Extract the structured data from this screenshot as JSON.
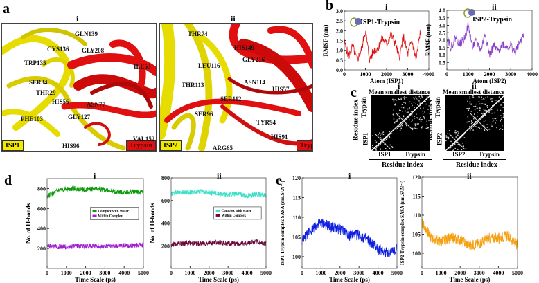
{
  "panels": {
    "a": {
      "label": "a",
      "sub_i": "i",
      "sub_ii": "ii",
      "i": {
        "left_tag": "ISP1",
        "right_tag": "Trypsin",
        "residues": [
          "GLN139",
          "CYS136",
          "GLY208",
          "TRP135",
          "ILE53",
          "SER34",
          "THR29",
          "HIS56",
          "ASN77",
          "GLY127",
          "PHE103",
          "VAL152",
          "HIS96"
        ]
      },
      "ii": {
        "left_tag": "ISP2",
        "right_tag": "Trypsin",
        "residues": [
          "THR74",
          "HIS149",
          "GLY216",
          "LEU116",
          "THR113",
          "ASN114",
          "HIS57",
          "SER112",
          "SER96",
          "TYR94",
          "HIS91",
          "ARG65"
        ]
      }
    },
    "b": {
      "label": "b",
      "sub_i": "i",
      "sub_ii": "ii",
      "inset_i": "ISP1-Trypsin",
      "inset_ii": "ISP2-Trypsin"
    },
    "c": {
      "label": "c",
      "sub_i": "i",
      "sub_ii": "ii",
      "title": "Mean smallest distance",
      "axis": "Residue index",
      "i": {
        "seg1": "ISP1",
        "seg2": "Trypsin"
      },
      "ii": {
        "seg1": "ISP2",
        "seg2": "Trypsin"
      }
    },
    "d": {
      "label": "d",
      "sub_i": "i",
      "sub_ii": "ii"
    },
    "e": {
      "label": "e",
      "sub_i": "i",
      "sub_ii": "ii"
    }
  },
  "chart_data": [
    {
      "id": "b-i",
      "type": "line",
      "xlabel": "Atom (ISP1)",
      "ylabel": "RMSF (nm)",
      "xlim": [
        0,
        4000
      ],
      "ylim": [
        0,
        3.0
      ],
      "xticks": [
        0,
        1000,
        2000,
        3000,
        4000
      ],
      "yticks": [
        0,
        0.5,
        1.0,
        1.5,
        2.0,
        2.5,
        3.0
      ],
      "series": [
        {
          "color": "#e01010",
          "x": [
            0,
            200,
            400,
            600,
            800,
            1000,
            1200,
            1400,
            1600,
            1800,
            2000,
            2200,
            2400,
            2600,
            2800,
            3000,
            3200,
            3400,
            3600
          ],
          "values": [
            1.4,
            0.7,
            1.2,
            0.5,
            1.0,
            2.0,
            0.5,
            1.0,
            1.1,
            1.6,
            1.3,
            1.8,
            1.4,
            0.6,
            1.7,
            0.8,
            1.5,
            0.5,
            2.0
          ]
        }
      ]
    },
    {
      "id": "b-ii",
      "type": "line",
      "xlabel": "Atom (ISP2)",
      "ylabel": "RMSF (nm)",
      "xlim": [
        0,
        4000
      ],
      "ylim": [
        0,
        4.0
      ],
      "xticks": [
        0,
        1000,
        2000,
        3000,
        4000
      ],
      "yticks": [
        0.5,
        1.0,
        1.5,
        2.0,
        2.5,
        3.0,
        3.5,
        4.0
      ],
      "series": [
        {
          "color": "#8a3fc8",
          "x": [
            0,
            200,
            400,
            600,
            800,
            1000,
            1200,
            1400,
            1600,
            1800,
            2000,
            2200,
            2400,
            2600,
            2800,
            3000,
            3200,
            3400,
            3600
          ],
          "values": [
            2.3,
            1.5,
            2.2,
            1.8,
            2.0,
            3.0,
            1.6,
            1.9,
            1.3,
            2.5,
            1.0,
            1.6,
            1.2,
            1.8,
            1.5,
            1.7,
            1.1,
            1.8,
            2.3
          ]
        }
      ]
    },
    {
      "id": "d-i",
      "type": "line",
      "xlabel": "Time Scale (ps)",
      "ylabel": "No. of H-bonds",
      "xlim": [
        0,
        5000
      ],
      "ylim": [
        0,
        900
      ],
      "xticks": [
        0,
        1000,
        2000,
        3000,
        4000,
        5000
      ],
      "yticks": [
        200,
        400,
        600,
        800
      ],
      "legend": "center-right",
      "series": [
        {
          "name": "Complex with Water",
          "color": "#0a9a0a",
          "x": [
            0,
            500,
            1000,
            1500,
            2000,
            2500,
            3000,
            3500,
            4000,
            4500,
            5000
          ],
          "values": [
            720,
            770,
            800,
            800,
            790,
            800,
            790,
            770,
            760,
            770,
            760
          ]
        },
        {
          "name": "Within Complex",
          "color": "#a020d0",
          "x": [
            0,
            500,
            1000,
            1500,
            2000,
            2500,
            3000,
            3500,
            4000,
            4500,
            5000
          ],
          "values": [
            225,
            220,
            215,
            225,
            220,
            225,
            220,
            225,
            230,
            230,
            235
          ]
        }
      ]
    },
    {
      "id": "d-ii",
      "type": "line",
      "xlabel": "Time Scale (ps)",
      "ylabel": "No. of H-bonds",
      "xlim": [
        0,
        5000
      ],
      "ylim": [
        0,
        800
      ],
      "xticks": [
        0,
        1000,
        2000,
        3000,
        4000,
        5000
      ],
      "yticks": [
        200,
        400,
        600,
        800
      ],
      "legend": "center-right",
      "series": [
        {
          "name": "Complex with water",
          "color": "#40e0c8",
          "x": [
            0,
            500,
            1000,
            1500,
            2000,
            2500,
            3000,
            3500,
            4000,
            4500,
            5000
          ],
          "values": [
            660,
            680,
            670,
            680,
            670,
            660,
            650,
            660,
            640,
            660,
            640
          ]
        },
        {
          "name": "Within Complex",
          "color": "#6a0a3a",
          "x": [
            0,
            500,
            1000,
            1500,
            2000,
            2500,
            3000,
            3500,
            4000,
            4500,
            5000
          ],
          "values": [
            210,
            220,
            225,
            220,
            225,
            230,
            220,
            215,
            225,
            235,
            220
          ]
        }
      ]
    },
    {
      "id": "e-i",
      "type": "line",
      "xlabel": "Time Scale (ps)",
      "ylabel": "ISP1-Trypsin complex SASA (nm.S².N⁻¹)",
      "xlim": [
        0,
        5000
      ],
      "ylim": [
        97,
        120
      ],
      "xticks": [
        0,
        1000,
        2000,
        3000,
        4000,
        5000
      ],
      "yticks": [
        100,
        105,
        110,
        115,
        120
      ],
      "series": [
        {
          "color": "#1020e0",
          "x": [
            0,
            500,
            1000,
            1500,
            2000,
            2500,
            3000,
            3500,
            4000,
            4500,
            5000
          ],
          "values": [
            104,
            107,
            108.5,
            107.5,
            107,
            105.5,
            105.5,
            104,
            102,
            101,
            102
          ]
        }
      ]
    },
    {
      "id": "e-ii",
      "type": "line",
      "xlabel": "Time Scale (ps)",
      "ylabel": "ISP2-Trypsin complex SASA (nm.S².N⁻¹)",
      "xlim": [
        0,
        5000
      ],
      "ylim": [
        96,
        120
      ],
      "xticks": [
        0,
        1000,
        2000,
        3000,
        4000,
        5000
      ],
      "yticks": [
        100,
        105,
        110,
        115,
        120
      ],
      "series": [
        {
          "color": "#f5a010",
          "x": [
            0,
            500,
            1000,
            1500,
            2000,
            2500,
            3000,
            3500,
            4000,
            4500,
            5000
          ],
          "values": [
            108,
            104,
            103,
            104,
            103.5,
            102,
            102.5,
            104,
            104,
            104.5,
            102
          ]
        }
      ]
    }
  ]
}
